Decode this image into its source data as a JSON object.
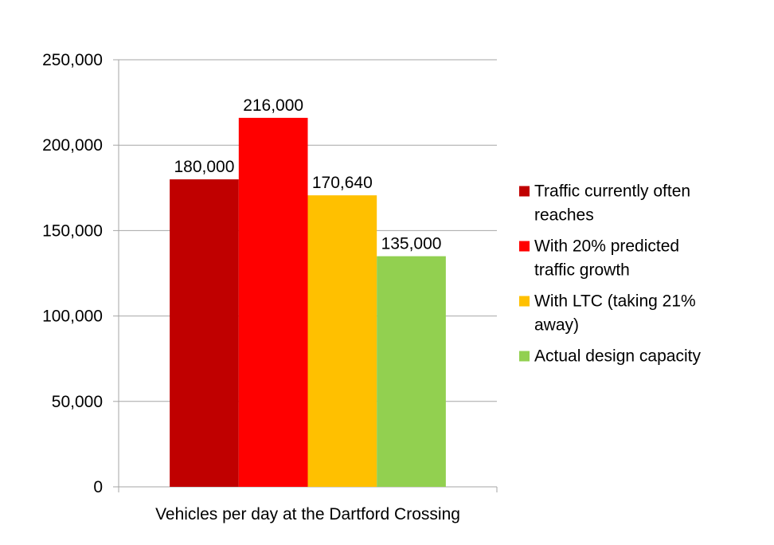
{
  "chart_data": {
    "type": "bar",
    "categories": [
      "Vehicles per day at the Dartford Crossing"
    ],
    "series": [
      {
        "name": "Traffic currently often reaches",
        "legend_lines": [
          "Traffic currently often",
          "reaches"
        ],
        "values": [
          180000
        ],
        "label": "180,000",
        "color": "#C00000"
      },
      {
        "name": "With 20% predicted traffic growth",
        "legend_lines": [
          "With 20% predicted",
          "traffic growth"
        ],
        "values": [
          216000
        ],
        "label": "216,000",
        "color": "#FF0000"
      },
      {
        "name": "With LTC (taking 21% away)",
        "legend_lines": [
          "With LTC (taking 21%",
          "away)"
        ],
        "values": [
          170640
        ],
        "label": "170,640",
        "color": "#FFC000"
      },
      {
        "name": "Actual design capacity",
        "legend_lines": [
          "Actual design capacity"
        ],
        "values": [
          135000
        ],
        "label": "135,000",
        "color": "#92D050"
      }
    ],
    "yticks": [
      "0",
      "50,000",
      "100,000",
      "150,000",
      "200,000",
      "250,000"
    ],
    "ylim": [
      0,
      250000
    ],
    "grid": true,
    "legend_position": "right",
    "title": "",
    "xlabel": "",
    "ylabel": ""
  }
}
